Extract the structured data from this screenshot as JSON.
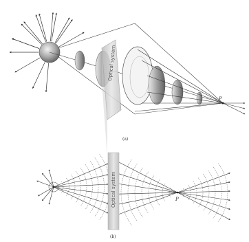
{
  "panel_a": {
    "system_label": "Optical system",
    "point_label": "P",
    "caption": "(a)"
  },
  "panel_b": {
    "system_label": "Optical system",
    "point_label": "P",
    "caption": "(b)"
  },
  "colors": {
    "ray": "#333333",
    "wavefront": "#888888",
    "slab": "#d9d9d9",
    "sphere": "#a8a8a8"
  }
}
